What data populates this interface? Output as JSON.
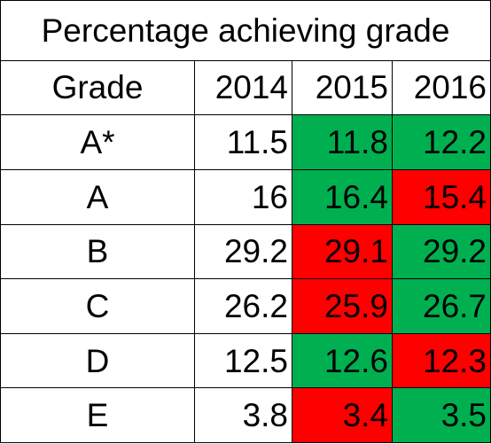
{
  "title": "Percentage achieving grade",
  "colors": {
    "increase": "#00b050",
    "decrease": "#ff0000",
    "neutral": "#ffffff",
    "border": "#000000"
  },
  "header": {
    "grade": "Grade",
    "years": [
      "2014",
      "2015",
      "2016"
    ]
  },
  "rows": [
    {
      "grade": "A*",
      "values": [
        "11.5",
        "11.8",
        "12.2"
      ],
      "status": [
        "none",
        "increase",
        "increase"
      ]
    },
    {
      "grade": "A",
      "values": [
        "16",
        "16.4",
        "15.4"
      ],
      "status": [
        "none",
        "increase",
        "decrease"
      ]
    },
    {
      "grade": "B",
      "values": [
        "29.2",
        "29.1",
        "29.2"
      ],
      "status": [
        "none",
        "decrease",
        "increase"
      ]
    },
    {
      "grade": "C",
      "values": [
        "26.2",
        "25.9",
        "26.7"
      ],
      "status": [
        "none",
        "decrease",
        "increase"
      ]
    },
    {
      "grade": "D",
      "values": [
        "12.5",
        "12.6",
        "12.3"
      ],
      "status": [
        "none",
        "increase",
        "decrease"
      ]
    },
    {
      "grade": "E",
      "values": [
        "3.8",
        "3.4",
        "3.5"
      ],
      "status": [
        "none",
        "decrease",
        "increase"
      ]
    }
  ]
}
